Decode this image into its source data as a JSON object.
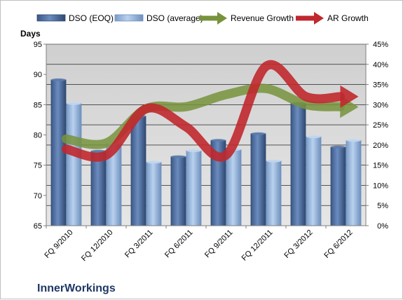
{
  "chart_data": {
    "type": "bar",
    "title": "",
    "company": "InnerWorkings",
    "ylabel_left": "Days",
    "categories": [
      "FQ 9/2010",
      "FQ 12/2010",
      "FQ 3/2011",
      "FQ 6/2011",
      "FQ 9/2011",
      "FQ 12/2011",
      "FQ 3/2012",
      "FQ 6/2012"
    ],
    "left_axis": {
      "min": 65,
      "max": 95,
      "ticks": [
        "65",
        "70",
        "75",
        "80",
        "85",
        "90",
        "95"
      ]
    },
    "right_axis": {
      "min": 0,
      "max": 45,
      "ticks": [
        "0%",
        "5%",
        "10%",
        "15%",
        "20%",
        "25%",
        "30%",
        "35%",
        "40%",
        "45%"
      ]
    },
    "series": [
      {
        "name": "DSO (EOQ)",
        "kind": "bar",
        "axis": "left",
        "color": "#4f6fa0",
        "values": [
          89.1,
          77.3,
          83.1,
          76.4,
          79.1,
          80.2,
          85.2,
          78.0
        ]
      },
      {
        "name": "DSO (average)",
        "kind": "bar",
        "axis": "left",
        "color": "#8fb0dc",
        "values": [
          85.2,
          78.6,
          75.5,
          77.4,
          77.6,
          75.7,
          79.7,
          79.1
        ]
      },
      {
        "name": "Revenue Growth",
        "kind": "line",
        "axis": "right",
        "color": "#77933c",
        "values": [
          21.5,
          20.5,
          29.0,
          29.5,
          32.5,
          34.0,
          30.0,
          29.5
        ]
      },
      {
        "name": "AR Growth",
        "kind": "line",
        "axis": "right",
        "color": "#c0282d",
        "values": [
          19.0,
          17.5,
          29.0,
          24.5,
          17.5,
          39.5,
          32.0,
          32.0
        ]
      }
    ],
    "grid": true,
    "legend_position": "top"
  }
}
